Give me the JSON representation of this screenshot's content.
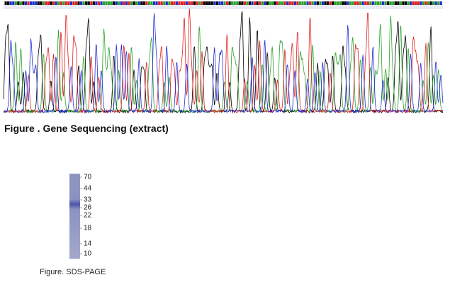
{
  "figures": [
    {
      "caption": "Figure . Gene Sequencing (extract)"
    },
    {
      "caption": "Figure. SDS-PAGE",
      "marker_labels": [
        70,
        44,
        33,
        26,
        22,
        18,
        14,
        10
      ]
    }
  ]
}
